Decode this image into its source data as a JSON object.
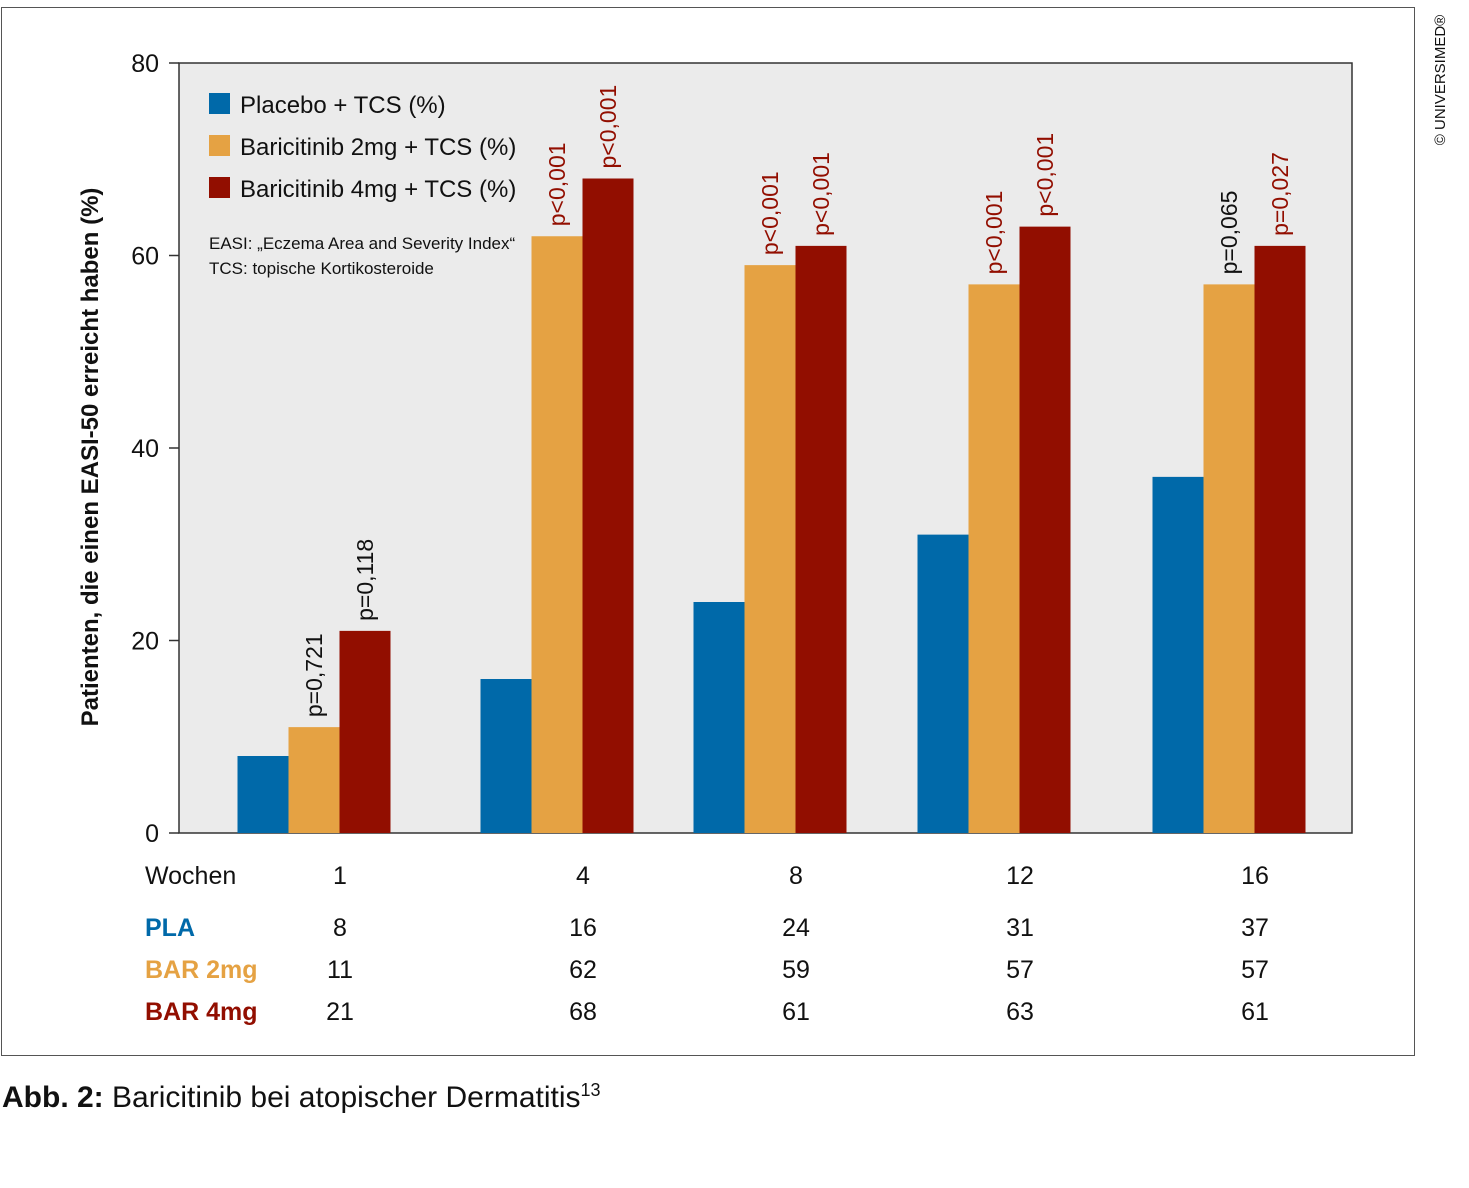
{
  "chart_data": {
    "type": "bar",
    "categories": [
      "1",
      "4",
      "8",
      "12",
      "16"
    ],
    "series": [
      {
        "name": "Placebo + TCS (%)",
        "values": [
          8,
          16,
          24,
          31,
          37
        ],
        "color": "#0069a9"
      },
      {
        "name": "Baricitinib 2mg + TCS (%)",
        "values": [
          11,
          62,
          59,
          57,
          57
        ],
        "color": "#e5a243"
      },
      {
        "name": "Baricitinib 4mg + TCS (%)",
        "values": [
          21,
          68,
          61,
          63,
          61
        ],
        "color": "#920e00"
      }
    ],
    "pvalues": {
      "2mg": [
        "p=0,721",
        "p<0,001",
        "p<0,001",
        "p<0,001",
        "p=0,065"
      ],
      "4mg": [
        "p=0,118",
        "p<0,001",
        "p<0,001",
        "p<0,001",
        "p=0,027"
      ]
    },
    "pvalue_colors": {
      "2mg": [
        "#111111",
        "#920e00",
        "#920e00",
        "#920e00",
        "#111111"
      ],
      "4mg": [
        "#111111",
        "#920e00",
        "#920e00",
        "#920e00",
        "#920e00"
      ]
    },
    "ylabel": "Patienten, die einen EASI-50 erreicht haben (%)",
    "xlabel": "",
    "yticks": [
      0,
      20,
      40,
      60,
      80
    ],
    "ylim": [
      0,
      80
    ],
    "grid": false,
    "background": "#ebebeb",
    "legend_placement": "top-left",
    "notes": [
      "EASI: „Eczema Area and Severity Index“",
      "TCS: topische Kortikosteroide"
    ]
  },
  "table": {
    "header_label": "Wochen",
    "rows": [
      {
        "label": "PLA",
        "color": "#0069a9",
        "values": [
          "8",
          "16",
          "24",
          "31",
          "37"
        ]
      },
      {
        "label": "BAR 2mg",
        "color": "#e5a243",
        "values": [
          "11",
          "62",
          "59",
          "57",
          "57"
        ]
      },
      {
        "label": "BAR 4mg",
        "color": "#920e00",
        "values": [
          "21",
          "68",
          "61",
          "63",
          "61"
        ]
      }
    ]
  },
  "copyright": "© UNIVERSIMED®",
  "caption": {
    "label": "Abb. 2:",
    "text": " Baricitinib bei atopischer Dermatitis",
    "superscript": "13"
  }
}
